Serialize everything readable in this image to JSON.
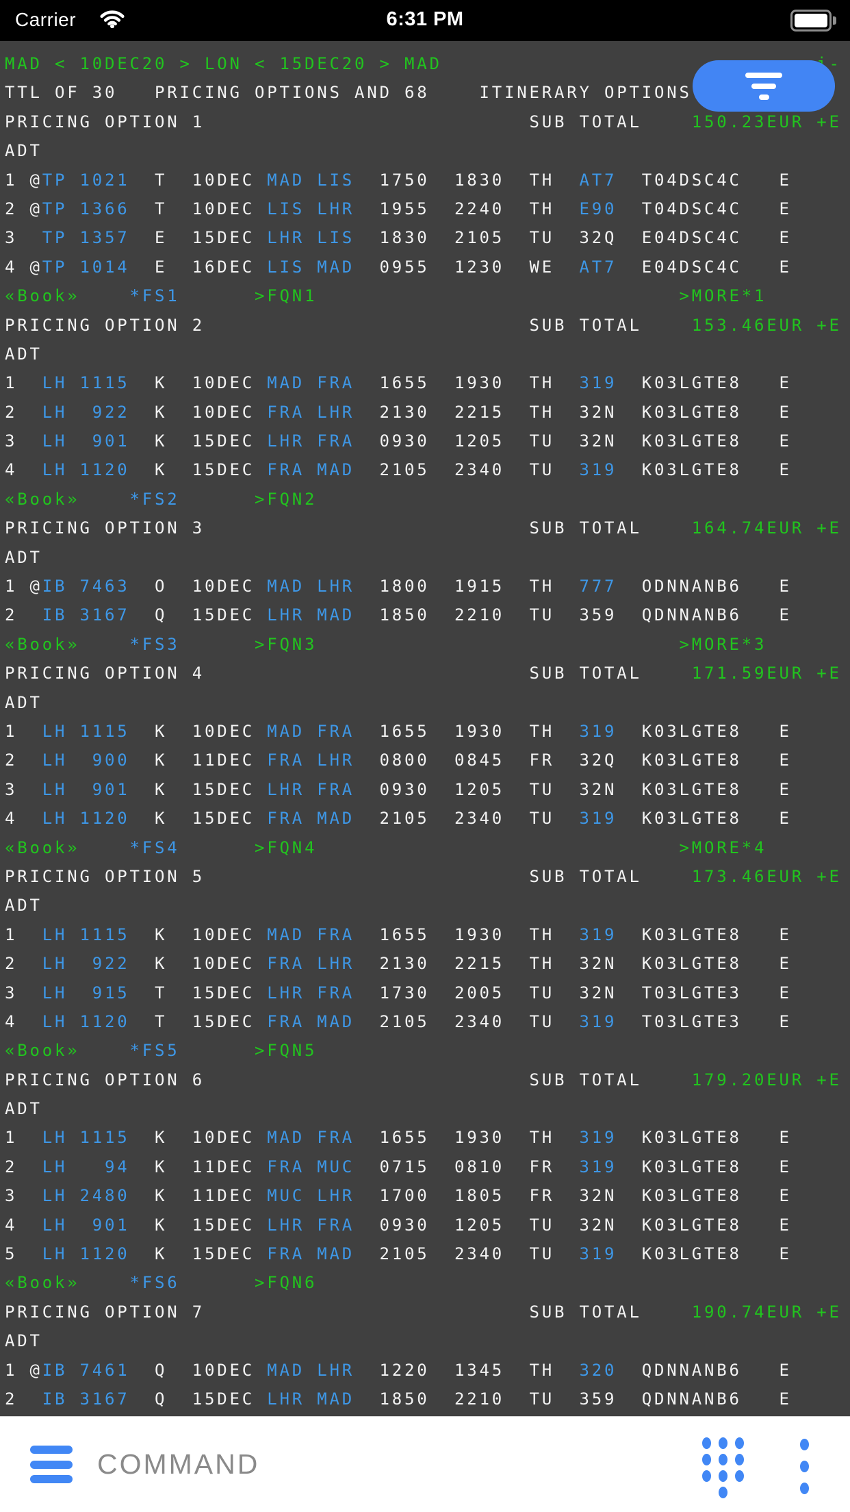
{
  "status_bar": {
    "carrier": "Carrier",
    "time": "6:31 PM",
    "wifi_icon": "wifi-full",
    "battery_icon": "battery-full"
  },
  "colors": {
    "background": "#404040",
    "terminal_green": "#21c41e",
    "terminal_blue": "#3e97e6",
    "terminal_white": "#f2f2f2",
    "accent_blue": "#4285f4",
    "bottom_icon_blue": "#4187f5",
    "command_gray": "#8a8a8a"
  },
  "terminal": {
    "route_header": "MAD < 10DEC20 > LON < 15DEC20 > MAD",
    "occluded_fragment": "i-",
    "summary": {
      "ttl": "TTL OF 30",
      "pricing": "PRICING OPTIONS AND 68",
      "itinerary": "ITINERARY OPTIONS"
    },
    "pricing_option_label": "PRICING OPTION",
    "sub_total_label": "SUB TOTAL",
    "pax_type": "ADT",
    "book_label": "«Book»",
    "pricing_options": [
      {
        "number": 1,
        "sub_total": "150.23EUR +E",
        "fs": "*FS1",
        "fqn": ">FQN1",
        "more": ">MORE*1",
        "segments": [
          {
            "line": 1,
            "marker": "@",
            "carrier": "TP",
            "flight": "1021",
            "cls": "T",
            "date": "10DEC",
            "from": "MAD",
            "to": "LIS",
            "dep": "1750",
            "arr": "1830",
            "day": "TH",
            "equip": "AT7",
            "equip_link": true,
            "fare": "T04DSC4C",
            "cabin": "E"
          },
          {
            "line": 2,
            "marker": "@",
            "carrier": "TP",
            "flight": "1366",
            "cls": "T",
            "date": "10DEC",
            "from": "LIS",
            "to": "LHR",
            "dep": "1955",
            "arr": "2240",
            "day": "TH",
            "equip": "E90",
            "equip_link": true,
            "fare": "T04DSC4C",
            "cabin": "E"
          },
          {
            "line": 3,
            "marker": "",
            "carrier": "TP",
            "flight": "1357",
            "cls": "E",
            "date": "15DEC",
            "from": "LHR",
            "to": "LIS",
            "dep": "1830",
            "arr": "2105",
            "day": "TU",
            "equip": "32Q",
            "equip_link": false,
            "fare": "E04DSC4C",
            "cabin": "E"
          },
          {
            "line": 4,
            "marker": "@",
            "carrier": "TP",
            "flight": "1014",
            "cls": "E",
            "date": "16DEC",
            "from": "LIS",
            "to": "MAD",
            "dep": "0955",
            "arr": "1230",
            "day": "WE",
            "equip": "AT7",
            "equip_link": true,
            "fare": "E04DSC4C",
            "cabin": "E"
          }
        ]
      },
      {
        "number": 2,
        "sub_total": "153.46EUR +E",
        "fs": "*FS2",
        "fqn": ">FQN2",
        "more": null,
        "segments": [
          {
            "line": 1,
            "marker": "",
            "carrier": "LH",
            "flight": "1115",
            "cls": "K",
            "date": "10DEC",
            "from": "MAD",
            "to": "FRA",
            "dep": "1655",
            "arr": "1930",
            "day": "TH",
            "equip": "319",
            "equip_link": true,
            "fare": "K03LGTE8",
            "cabin": "E"
          },
          {
            "line": 2,
            "marker": "",
            "carrier": "LH",
            "flight": "922",
            "cls": "K",
            "date": "10DEC",
            "from": "FRA",
            "to": "LHR",
            "dep": "2130",
            "arr": "2215",
            "day": "TH",
            "equip": "32N",
            "equip_link": false,
            "fare": "K03LGTE8",
            "cabin": "E"
          },
          {
            "line": 3,
            "marker": "",
            "carrier": "LH",
            "flight": "901",
            "cls": "K",
            "date": "15DEC",
            "from": "LHR",
            "to": "FRA",
            "dep": "0930",
            "arr": "1205",
            "day": "TU",
            "equip": "32N",
            "equip_link": false,
            "fare": "K03LGTE8",
            "cabin": "E"
          },
          {
            "line": 4,
            "marker": "",
            "carrier": "LH",
            "flight": "1120",
            "cls": "K",
            "date": "15DEC",
            "from": "FRA",
            "to": "MAD",
            "dep": "2105",
            "arr": "2340",
            "day": "TU",
            "equip": "319",
            "equip_link": true,
            "fare": "K03LGTE8",
            "cabin": "E"
          }
        ]
      },
      {
        "number": 3,
        "sub_total": "164.74EUR +E",
        "fs": "*FS3",
        "fqn": ">FQN3",
        "more": ">MORE*3",
        "segments": [
          {
            "line": 1,
            "marker": "@",
            "carrier": "IB",
            "flight": "7463",
            "cls": "O",
            "date": "10DEC",
            "from": "MAD",
            "to": "LHR",
            "dep": "1800",
            "arr": "1915",
            "day": "TH",
            "equip": "777",
            "equip_link": true,
            "fare": "ODNNANB6",
            "cabin": "E"
          },
          {
            "line": 2,
            "marker": "",
            "carrier": "IB",
            "flight": "3167",
            "cls": "Q",
            "date": "15DEC",
            "from": "LHR",
            "to": "MAD",
            "dep": "1850",
            "arr": "2210",
            "day": "TU",
            "equip": "359",
            "equip_link": false,
            "fare": "QDNNANB6",
            "cabin": "E"
          }
        ]
      },
      {
        "number": 4,
        "sub_total": "171.59EUR +E",
        "fs": "*FS4",
        "fqn": ">FQN4",
        "more": ">MORE*4",
        "segments": [
          {
            "line": 1,
            "marker": "",
            "carrier": "LH",
            "flight": "1115",
            "cls": "K",
            "date": "10DEC",
            "from": "MAD",
            "to": "FRA",
            "dep": "1655",
            "arr": "1930",
            "day": "TH",
            "equip": "319",
            "equip_link": true,
            "fare": "K03LGTE8",
            "cabin": "E"
          },
          {
            "line": 2,
            "marker": "",
            "carrier": "LH",
            "flight": "900",
            "cls": "K",
            "date": "11DEC",
            "from": "FRA",
            "to": "LHR",
            "dep": "0800",
            "arr": "0845",
            "day": "FR",
            "equip": "32Q",
            "equip_link": false,
            "fare": "K03LGTE8",
            "cabin": "E"
          },
          {
            "line": 3,
            "marker": "",
            "carrier": "LH",
            "flight": "901",
            "cls": "K",
            "date": "15DEC",
            "from": "LHR",
            "to": "FRA",
            "dep": "0930",
            "arr": "1205",
            "day": "TU",
            "equip": "32N",
            "equip_link": false,
            "fare": "K03LGTE8",
            "cabin": "E"
          },
          {
            "line": 4,
            "marker": "",
            "carrier": "LH",
            "flight": "1120",
            "cls": "K",
            "date": "15DEC",
            "from": "FRA",
            "to": "MAD",
            "dep": "2105",
            "arr": "2340",
            "day": "TU",
            "equip": "319",
            "equip_link": true,
            "fare": "K03LGTE8",
            "cabin": "E"
          }
        ]
      },
      {
        "number": 5,
        "sub_total": "173.46EUR +E",
        "fs": "*FS5",
        "fqn": ">FQN5",
        "more": null,
        "segments": [
          {
            "line": 1,
            "marker": "",
            "carrier": "LH",
            "flight": "1115",
            "cls": "K",
            "date": "10DEC",
            "from": "MAD",
            "to": "FRA",
            "dep": "1655",
            "arr": "1930",
            "day": "TH",
            "equip": "319",
            "equip_link": true,
            "fare": "K03LGTE8",
            "cabin": "E"
          },
          {
            "line": 2,
            "marker": "",
            "carrier": "LH",
            "flight": "922",
            "cls": "K",
            "date": "10DEC",
            "from": "FRA",
            "to": "LHR",
            "dep": "2130",
            "arr": "2215",
            "day": "TH",
            "equip": "32N",
            "equip_link": false,
            "fare": "K03LGTE8",
            "cabin": "E"
          },
          {
            "line": 3,
            "marker": "",
            "carrier": "LH",
            "flight": "915",
            "cls": "T",
            "date": "15DEC",
            "from": "LHR",
            "to": "FRA",
            "dep": "1730",
            "arr": "2005",
            "day": "TU",
            "equip": "32N",
            "equip_link": false,
            "fare": "T03LGTE3",
            "cabin": "E"
          },
          {
            "line": 4,
            "marker": "",
            "carrier": "LH",
            "flight": "1120",
            "cls": "T",
            "date": "15DEC",
            "from": "FRA",
            "to": "MAD",
            "dep": "2105",
            "arr": "2340",
            "day": "TU",
            "equip": "319",
            "equip_link": true,
            "fare": "T03LGTE3",
            "cabin": "E"
          }
        ]
      },
      {
        "number": 6,
        "sub_total": "179.20EUR +E",
        "fs": "*FS6",
        "fqn": ">FQN6",
        "more": null,
        "segments": [
          {
            "line": 1,
            "marker": "",
            "carrier": "LH",
            "flight": "1115",
            "cls": "K",
            "date": "10DEC",
            "from": "MAD",
            "to": "FRA",
            "dep": "1655",
            "arr": "1930",
            "day": "TH",
            "equip": "319",
            "equip_link": true,
            "fare": "K03LGTE8",
            "cabin": "E"
          },
          {
            "line": 2,
            "marker": "",
            "carrier": "LH",
            "flight": "94",
            "cls": "K",
            "date": "11DEC",
            "from": "FRA",
            "to": "MUC",
            "dep": "0715",
            "arr": "0810",
            "day": "FR",
            "equip": "319",
            "equip_link": true,
            "fare": "K03LGTE8",
            "cabin": "E"
          },
          {
            "line": 3,
            "marker": "",
            "carrier": "LH",
            "flight": "2480",
            "cls": "K",
            "date": "11DEC",
            "from": "MUC",
            "to": "LHR",
            "dep": "1700",
            "arr": "1805",
            "day": "FR",
            "equip": "32N",
            "equip_link": false,
            "fare": "K03LGTE8",
            "cabin": "E"
          },
          {
            "line": 4,
            "marker": "",
            "carrier": "LH",
            "flight": "901",
            "cls": "K",
            "date": "15DEC",
            "from": "LHR",
            "to": "FRA",
            "dep": "0930",
            "arr": "1205",
            "day": "TU",
            "equip": "32N",
            "equip_link": false,
            "fare": "K03LGTE8",
            "cabin": "E"
          },
          {
            "line": 5,
            "marker": "",
            "carrier": "LH",
            "flight": "1120",
            "cls": "K",
            "date": "15DEC",
            "from": "FRA",
            "to": "MAD",
            "dep": "2105",
            "arr": "2340",
            "day": "TU",
            "equip": "319",
            "equip_link": true,
            "fare": "K03LGTE8",
            "cabin": "E"
          }
        ]
      },
      {
        "number": 7,
        "sub_total": "190.74EUR +E",
        "fs": null,
        "fqn": null,
        "more": null,
        "segments": [
          {
            "line": 1,
            "marker": "@",
            "carrier": "IB",
            "flight": "7461",
            "cls": "Q",
            "date": "10DEC",
            "from": "MAD",
            "to": "LHR",
            "dep": "1220",
            "arr": "1345",
            "day": "TH",
            "equip": "320",
            "equip_link": true,
            "fare": "QDNNANB6",
            "cabin": "E"
          },
          {
            "line": 2,
            "marker": "",
            "carrier": "IB",
            "flight": "3167",
            "cls": "Q",
            "date": "15DEC",
            "from": "LHR",
            "to": "MAD",
            "dep": "1850",
            "arr": "2210",
            "day": "TU",
            "equip": "359",
            "equip_link": false,
            "fare": "QDNNANB6",
            "cabin": "E"
          }
        ]
      }
    ]
  },
  "filter_button": {
    "icon": "filter"
  },
  "bottom_bar": {
    "command_label": "COMMAND",
    "menu_icon": "hamburger",
    "keypad_icon": "dial-pad",
    "more_icon": "vertical-ellipsis"
  }
}
